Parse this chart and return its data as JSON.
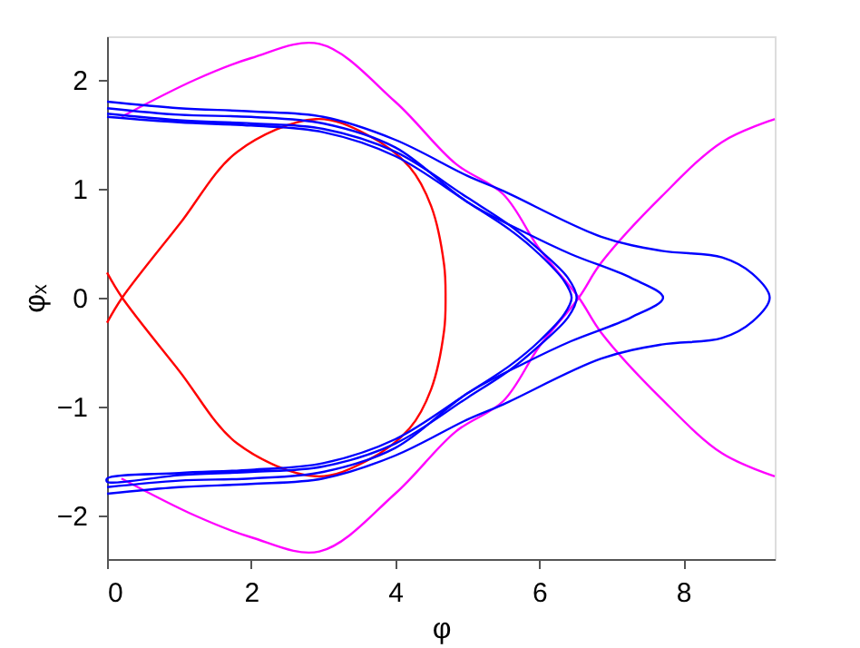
{
  "chart_data": {
    "type": "line",
    "xlabel": "φ",
    "ylabel": "φₓ",
    "xlim": [
      0,
      9.27
    ],
    "ylim": [
      -2.4,
      2.4
    ],
    "xticks": [
      0,
      2,
      4,
      6,
      8
    ],
    "yticks": [
      -2,
      -1,
      0,
      1,
      2
    ],
    "grid": false,
    "legend": false,
    "marker": "none",
    "line_style": "solid",
    "series": [
      {
        "color": "#ff0000",
        "x": [
          0,
          0.21,
          1,
          1.81,
          2.9,
          3.6,
          4.2,
          4.5,
          4.68,
          4.7,
          4.68,
          4.5,
          4.2,
          3.6,
          2.9,
          1.81,
          1,
          0.21,
          0
        ],
        "values": [
          0.23,
          0,
          -0.67,
          -1.34,
          -1.64,
          -1.5,
          -1.2,
          -0.84,
          -0.3,
          0,
          0.3,
          0.84,
          1.2,
          1.5,
          1.64,
          1.34,
          0.67,
          0,
          -0.23
        ]
      },
      {
        "color": "#ff00ff",
        "x": [
          0.2,
          1.22,
          2,
          2.95,
          4,
          4.84,
          5.5,
          6,
          6.55,
          6.86,
          7.7,
          8.54,
          9.27
        ],
        "values": [
          1.66,
          2.0,
          2.2,
          2.33,
          1.8,
          1.23,
          0.95,
          0.45,
          0,
          -0.32,
          -0.93,
          -1.43,
          -1.64
        ]
      },
      {
        "color": "#ff00ff",
        "x": [
          0.2,
          1.22,
          2,
          2.95,
          4,
          4.84,
          5.5,
          6,
          6.55,
          6.86,
          7.7,
          8.54,
          9.27
        ],
        "values": [
          -1.66,
          -2.0,
          -2.2,
          -2.33,
          -1.8,
          -1.23,
          -0.95,
          -0.45,
          0,
          0.32,
          0.93,
          1.43,
          1.64
        ]
      },
      {
        "color": "#0000ff",
        "x": [
          0,
          1,
          2,
          3,
          4,
          5,
          5.6,
          6,
          6.35,
          6.45,
          6.35,
          6,
          5.6,
          5,
          4,
          3,
          2,
          1,
          0,
          0,
          1,
          2,
          3,
          4,
          5,
          5.6,
          6,
          6.4,
          6.52,
          6.4,
          6,
          5.6,
          5,
          4,
          3,
          2,
          1,
          0
        ],
        "values": [
          1.66,
          1.61,
          1.58,
          1.52,
          1.3,
          0.88,
          0.62,
          0.4,
          0.15,
          0,
          -0.15,
          -0.4,
          -0.62,
          -0.88,
          -1.3,
          -1.52,
          -1.58,
          -1.61,
          -1.66,
          -1.69,
          -1.63,
          -1.6,
          -1.55,
          -1.34,
          -0.92,
          -0.66,
          -0.44,
          -0.18,
          0,
          0.18,
          0.44,
          0.66,
          0.92,
          1.34,
          1.55,
          1.6,
          1.63,
          1.69
        ]
      },
      {
        "color": "#0000ff",
        "x": [
          0,
          1,
          2,
          3,
          4,
          5,
          5.8,
          6.44,
          7.28,
          7.72,
          7.28,
          6.44,
          5.8,
          5,
          4,
          3,
          2,
          1,
          0
        ],
        "values": [
          1.74,
          1.68,
          1.66,
          1.6,
          1.38,
          0.88,
          0.6,
          0.4,
          0.18,
          0,
          -0.18,
          -0.4,
          -0.6,
          -0.88,
          -1.38,
          -1.6,
          -1.66,
          -1.68,
          -1.74
        ]
      },
      {
        "color": "#0000ff",
        "x": [
          0,
          1,
          2,
          3,
          4,
          5,
          5.5,
          6.86,
          7.7,
          8.54,
          8.96,
          9.2,
          8.96,
          8.54,
          7.7,
          6.86,
          5.5,
          5,
          4,
          3,
          2,
          1,
          0
        ],
        "values": [
          1.8,
          1.74,
          1.71,
          1.66,
          1.45,
          1.12,
          0.98,
          0.56,
          0.43,
          0.37,
          0.22,
          0,
          -0.22,
          -0.37,
          -0.43,
          -0.56,
          -0.98,
          -1.12,
          -1.45,
          -1.66,
          -1.71,
          -1.74,
          -1.8
        ]
      }
    ]
  }
}
